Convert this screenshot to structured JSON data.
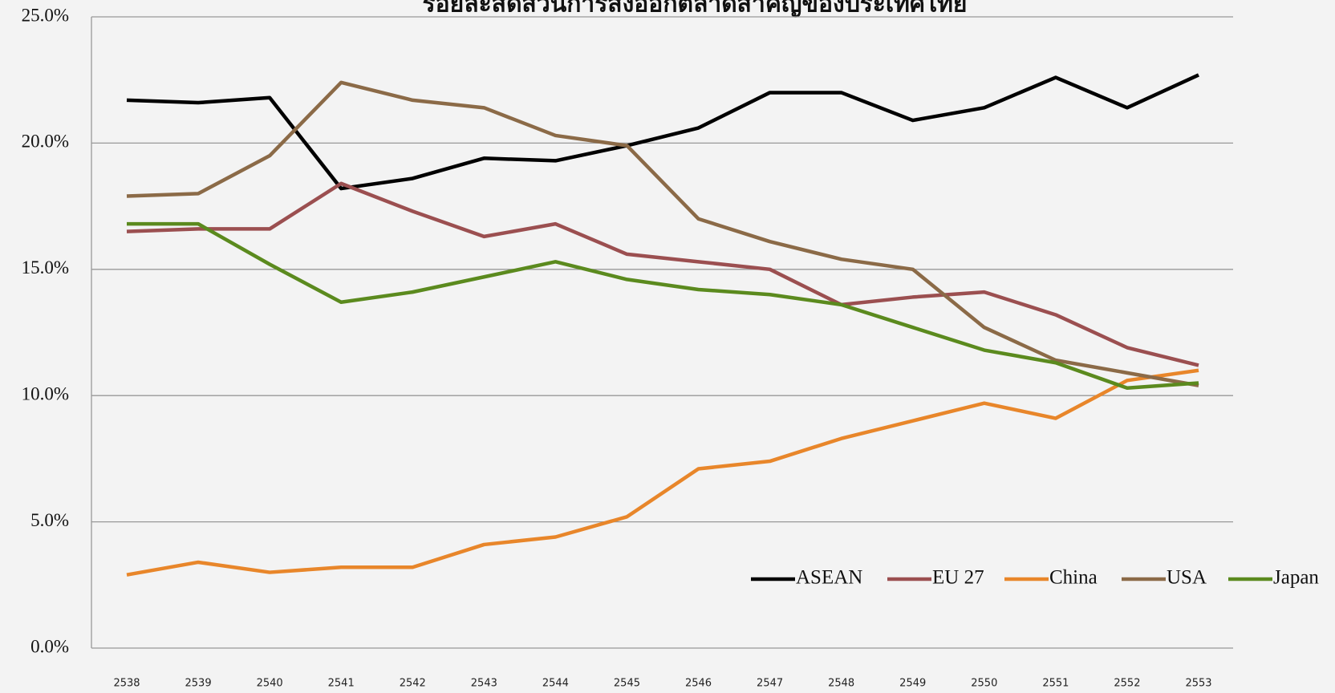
{
  "chart_data": {
    "type": "line",
    "title": "ร้อยละสัดส่วนการส่งออกตลาดสำคัญของประเทศไทย",
    "categories": [
      "2538",
      "2539",
      "2540",
      "2541",
      "2542",
      "2543",
      "2544",
      "2545",
      "2546",
      "2547",
      "2548",
      "2549",
      "2550",
      "2551",
      "2552",
      "2553"
    ],
    "series": [
      {
        "name": "ASEAN",
        "color": "#000000",
        "values": [
          21.7,
          21.6,
          21.8,
          18.2,
          18.6,
          19.4,
          19.3,
          19.9,
          20.6,
          22.0,
          22.0,
          20.9,
          21.4,
          22.6,
          21.4,
          22.7
        ]
      },
      {
        "name": "EU 27",
        "color": "#9b4f50",
        "values": [
          16.5,
          16.6,
          16.6,
          18.4,
          17.3,
          16.3,
          16.8,
          15.6,
          15.3,
          15.0,
          13.6,
          13.9,
          14.1,
          13.2,
          11.9,
          11.2
        ]
      },
      {
        "name": "China",
        "color": "#e8862a",
        "values": [
          2.9,
          3.4,
          3.0,
          3.2,
          3.2,
          4.1,
          4.4,
          5.2,
          7.1,
          7.4,
          8.3,
          9.0,
          9.7,
          9.1,
          10.6,
          11.0
        ]
      },
      {
        "name": "USA",
        "color": "#8b6a47",
        "values": [
          17.9,
          18.0,
          19.5,
          22.4,
          21.7,
          21.4,
          20.3,
          19.9,
          17.0,
          16.1,
          15.4,
          15.0,
          12.7,
          11.4,
          10.9,
          10.4
        ]
      },
      {
        "name": "Japan",
        "color": "#5b8a1e",
        "values": [
          16.8,
          16.8,
          15.2,
          13.7,
          14.1,
          14.7,
          15.3,
          14.6,
          14.2,
          14.0,
          13.6,
          12.7,
          11.8,
          11.3,
          10.3,
          10.5
        ]
      }
    ],
    "ylim": [
      0,
      25
    ],
    "yticks": [
      {
        "value": 0,
        "label": "0.0%"
      },
      {
        "value": 5,
        "label": "5.0%"
      },
      {
        "value": 10,
        "label": "10.0%"
      },
      {
        "value": 15,
        "label": "15.0%"
      },
      {
        "value": 20,
        "label": "20.0%"
      },
      {
        "value": 25,
        "label": "25.0%"
      }
    ],
    "grid": true,
    "legend": "bottom-right"
  }
}
